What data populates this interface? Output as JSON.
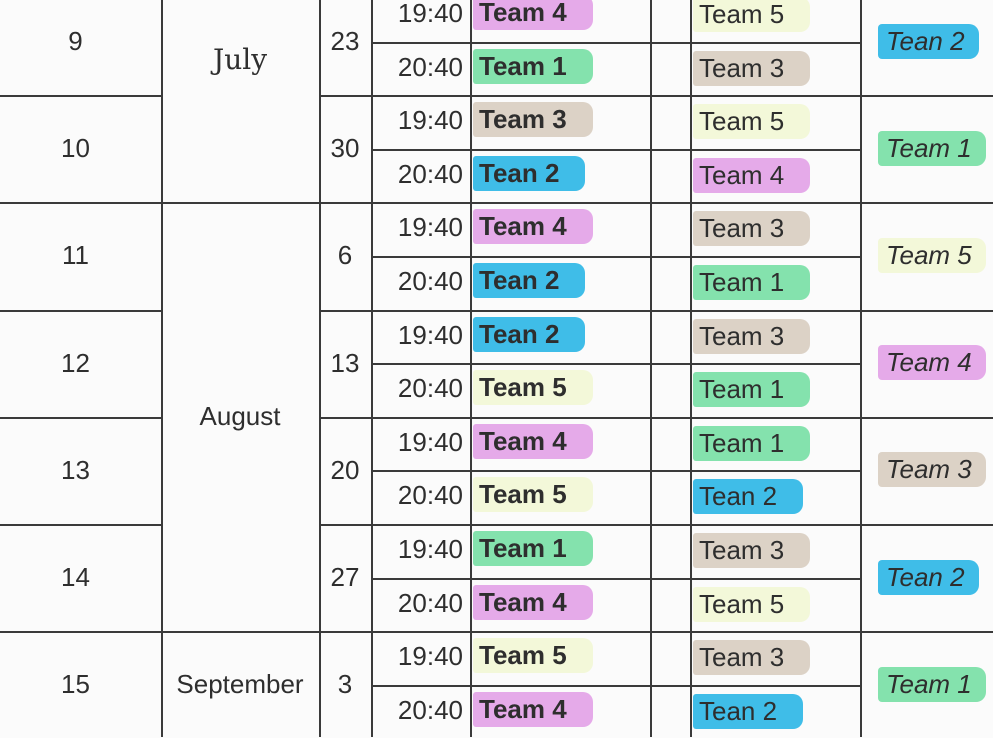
{
  "team_colors": {
    "Team 1": "#84e2ad",
    "Team 2": "#3fbde8",
    "Tean 2": "#3fbde8",
    "Team 3": "#dcd2c6",
    "Team 4": "#e5aae9",
    "Team 5": "#f3f8d9"
  },
  "months": [
    {
      "label": "July",
      "handwritten": true
    },
    {
      "label": "August",
      "handwritten": false
    },
    {
      "label": "September",
      "handwritten": false
    }
  ],
  "weeks": [
    {
      "week": "9",
      "date": "23",
      "games": [
        {
          "time": "19:40",
          "home": "Team 4",
          "away": "Team 5"
        },
        {
          "time": "20:40",
          "home": "Team 1",
          "away": "Team 3"
        }
      ],
      "bye": "Tean 2"
    },
    {
      "week": "10",
      "date": "30",
      "games": [
        {
          "time": "19:40",
          "home": "Team 3",
          "away": "Team 5"
        },
        {
          "time": "20:40",
          "home": "Tean 2",
          "away": "Team 4"
        }
      ],
      "bye": "Team 1"
    },
    {
      "week": "11",
      "date": "6",
      "games": [
        {
          "time": "19:40",
          "home": "Team 4",
          "away": "Team 3"
        },
        {
          "time": "20:40",
          "home": "Tean 2",
          "away": "Team 1"
        }
      ],
      "bye": "Team 5"
    },
    {
      "week": "12",
      "date": "13",
      "games": [
        {
          "time": "19:40",
          "home": "Tean 2",
          "away": "Team 3"
        },
        {
          "time": "20:40",
          "home": "Team 5",
          "away": "Team 1"
        }
      ],
      "bye": "Team 4"
    },
    {
      "week": "13",
      "date": "20",
      "games": [
        {
          "time": "19:40",
          "home": "Team 4",
          "away": "Team 1"
        },
        {
          "time": "20:40",
          "home": "Team 5",
          "away": "Tean 2"
        }
      ],
      "bye": "Team 3"
    },
    {
      "week": "14",
      "date": "27",
      "games": [
        {
          "time": "19:40",
          "home": "Team 1",
          "away": "Team 3"
        },
        {
          "time": "20:40",
          "home": "Team 4",
          "away": "Team 5"
        }
      ],
      "bye": "Tean 2"
    },
    {
      "week": "15",
      "date": "3",
      "games": [
        {
          "time": "19:40",
          "home": "Team 5",
          "away": "Team 3"
        },
        {
          "time": "20:40",
          "home": "Team 4",
          "away": "Tean 2"
        }
      ],
      "bye": "Team 1"
    }
  ]
}
